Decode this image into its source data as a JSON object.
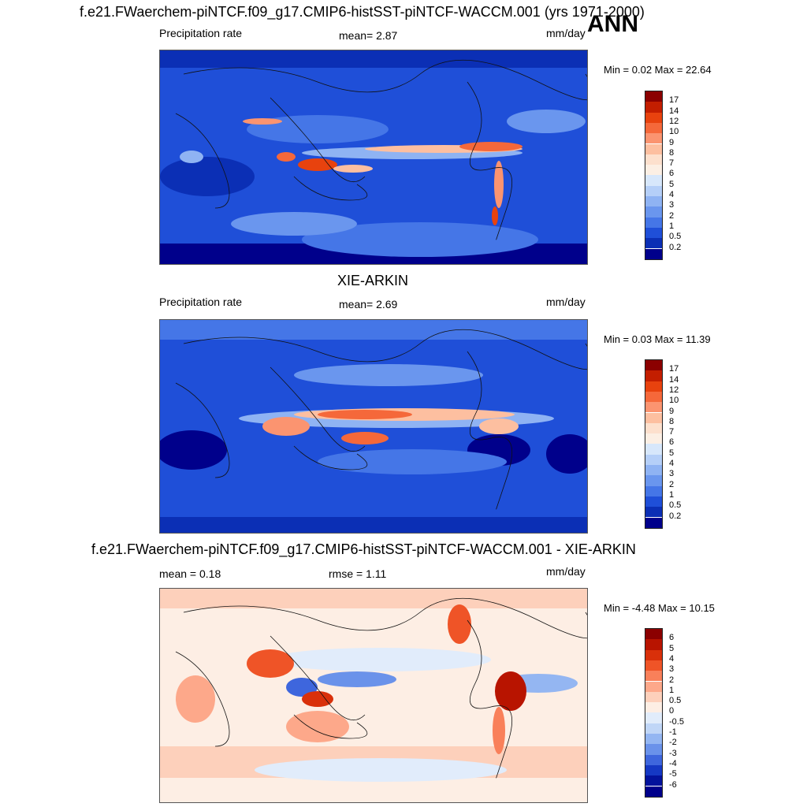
{
  "header": {
    "main_title": "f.e21.FWaerchem-piNTCF.f09_g17.CMIP6-histSST-piNTCF-WACCM.001 (yrs 1971-2000)",
    "season": "ANN"
  },
  "panel1": {
    "left_label": "Precipitation rate",
    "mean_text": "mean=   2.87",
    "units": "mm/day",
    "minmax": "Min =   0.02 Max =  22.64"
  },
  "panel2": {
    "title": "XIE-ARKIN",
    "left_label": "Precipitation rate",
    "mean_text": "mean=   2.69",
    "units": "mm/day",
    "minmax": "Min =   0.03 Max =  11.39"
  },
  "panel3": {
    "title": "f.e21.FWaerchem-piNTCF.f09_g17.CMIP6-histSST-piNTCF-WACCM.001 - XIE-ARKIN",
    "left_label": "mean =   0.18",
    "rmse_text": "rmse =    1.11",
    "units": "mm/day",
    "minmax": "Min =  -4.48 Max =  10.15"
  },
  "chart_data": [
    {
      "type": "heatmap",
      "title": "f.e21.FWaerchem-piNTCF.f09_g17.CMIP6-histSST-piNTCF-WACCM.001 (yrs 1971-2000)",
      "variable": "Precipitation rate",
      "units": "mm/day",
      "mean": 2.87,
      "min": 0.02,
      "max": 22.64,
      "colorbar_levels": [
        "17",
        "14",
        "12",
        "10",
        "9",
        "8",
        "7",
        "6",
        "5",
        "4",
        "3",
        "2",
        "1",
        "0.5",
        "0.2"
      ],
      "colorbar_colors": [
        "#8b0000",
        "#c31e00",
        "#e8420e",
        "#f5683a",
        "#fb9470",
        "#fdbfa0",
        "#fde0cd",
        "#fcefe4",
        "#d7e7fb",
        "#b5cff8",
        "#8fb3f3",
        "#6a96ee",
        "#4576e7",
        "#1f4fd8",
        "#0b2fb5",
        "#00008b"
      ]
    },
    {
      "type": "heatmap",
      "title": "XIE-ARKIN",
      "variable": "Precipitation rate",
      "units": "mm/day",
      "mean": 2.69,
      "min": 0.03,
      "max": 11.39,
      "colorbar_levels": [
        "17",
        "14",
        "12",
        "10",
        "9",
        "8",
        "7",
        "6",
        "5",
        "4",
        "3",
        "2",
        "1",
        "0.5",
        "0.2"
      ],
      "colorbar_colors": [
        "#8b0000",
        "#c31e00",
        "#e8420e",
        "#f5683a",
        "#fb9470",
        "#fdbfa0",
        "#fde0cd",
        "#fcefe4",
        "#d7e7fb",
        "#b5cff8",
        "#8fb3f3",
        "#6a96ee",
        "#4576e7",
        "#1f4fd8",
        "#0b2fb5",
        "#00008b"
      ]
    },
    {
      "type": "heatmap",
      "title": "f.e21.FWaerchem-piNTCF.f09_g17.CMIP6-histSST-piNTCF-WACCM.001 - XIE-ARKIN",
      "units": "mm/day",
      "mean": 0.18,
      "rmse": 1.11,
      "min": -4.48,
      "max": 10.15,
      "colorbar_levels": [
        "6",
        "5",
        "4",
        "3",
        "2",
        "1",
        "0.5",
        "0",
        "-0.5",
        "-1",
        "-2",
        "-3",
        "-4",
        "-5",
        "-6"
      ],
      "colorbar_colors": [
        "#8b0000",
        "#b81400",
        "#d9300a",
        "#ef5427",
        "#f9805a",
        "#fda88a",
        "#fdd0bb",
        "#fdeee4",
        "#e1ecfb",
        "#c0d6f7",
        "#94b6f2",
        "#6a92ea",
        "#3e66dd",
        "#1538c4",
        "#03129c",
        "#00008b"
      ]
    }
  ]
}
